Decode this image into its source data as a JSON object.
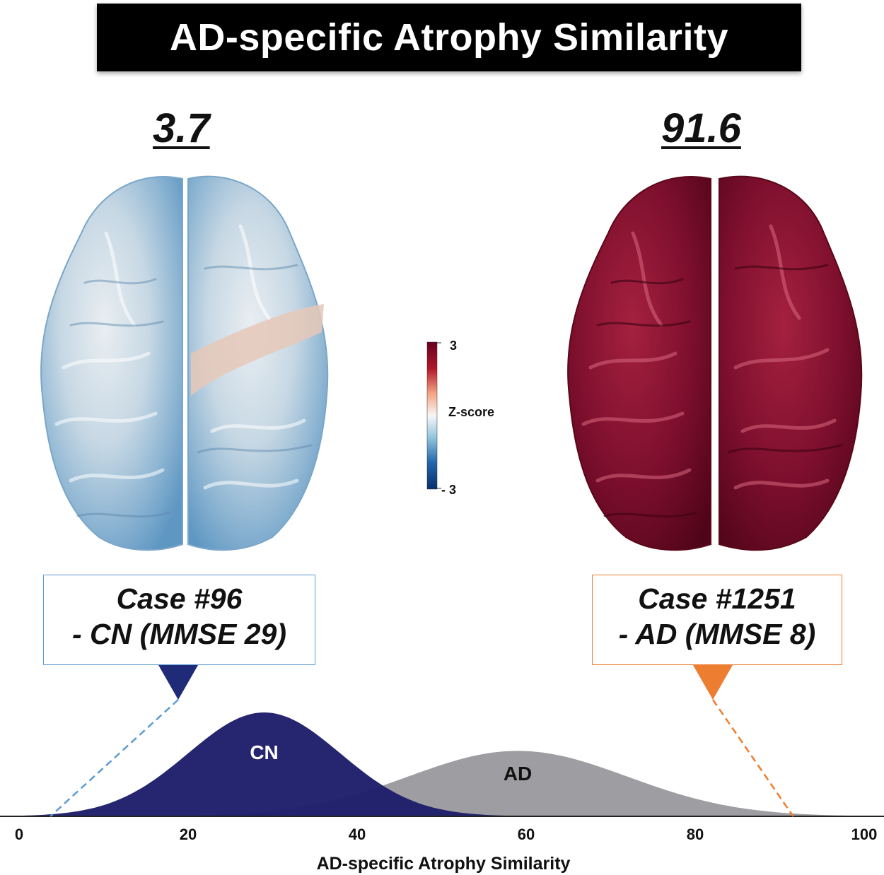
{
  "title": "AD-specific Atrophy Similarity",
  "left_case": {
    "score": "3.7",
    "case_line": "Case #96",
    "diagnosis_line": "- CN (MMSE 29)"
  },
  "right_case": {
    "score": "91.6",
    "case_line": "Case #1251",
    "diagnosis_line": "- AD (MMSE 8)"
  },
  "colorbar": {
    "max_label": "3",
    "title": "Z-score",
    "min_label": "- 3",
    "colors": [
      "#08306b",
      "#2166ac",
      "#92c5de",
      "#f7f7f7",
      "#f4a582",
      "#b2182b",
      "#67001f"
    ]
  },
  "chart_data": {
    "type": "area",
    "xlabel": "AD-specific Atrophy Similarity",
    "xlim": [
      0,
      100
    ],
    "xticks": [
      "0",
      "20",
      "40",
      "60",
      "80",
      "100"
    ],
    "series": [
      {
        "name": "CN",
        "distribution": "normal",
        "mean": 29,
        "sd": 9,
        "relative_peak": 1.0,
        "color": "#1f1f6b"
      },
      {
        "name": "AD",
        "distribution": "normal",
        "mean": 59,
        "sd": 13,
        "relative_peak": 0.63,
        "color": "#9e9ea2"
      }
    ],
    "markers": [
      {
        "case": "Case #96",
        "value": 3.7,
        "color": "#5b9bd5",
        "pointer_color": "#1f2a78"
      },
      {
        "case": "Case #1251",
        "value": 91.6,
        "color": "#ed7d31",
        "pointer_color": "#ed7d31"
      }
    ]
  },
  "colors": {
    "cn_brain": "#9ec3dc",
    "ad_brain": "#7a0d2c",
    "cn_box_border": "#5b9bd5",
    "ad_box_border": "#ed7d31"
  }
}
